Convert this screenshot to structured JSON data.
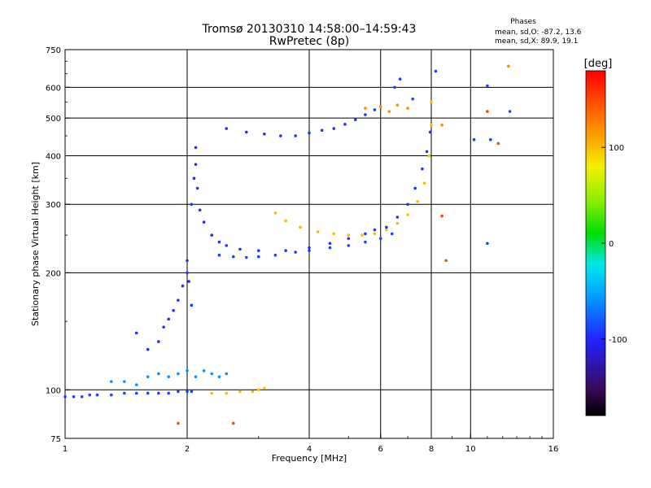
{
  "chart_data": {
    "type": "scatter",
    "title": "Tromsø 20130310 14:58:00–14:59:43",
    "subtitle": "RwPretec (8p)",
    "xlabel": "Frequency [MHz]",
    "ylabel": "Stationary phase Virtual Height [km]",
    "x_scale": "log",
    "y_scale": "log",
    "xlim": [
      1,
      16
    ],
    "ylim": [
      75,
      750
    ],
    "x_ticks": [
      1,
      2,
      4,
      6,
      8,
      10,
      16
    ],
    "x_tick_labels": [
      "1",
      "2",
      "4",
      "6",
      "8",
      "10",
      "16"
    ],
    "y_ticks": [
      75,
      100,
      200,
      300,
      400,
      500,
      600,
      750
    ],
    "y_tick_labels": [
      "75",
      "100",
      "200",
      "300",
      "400",
      "500",
      "600",
      "750"
    ],
    "x_grid": [
      2,
      4,
      6,
      8,
      10
    ],
    "y_grid": [
      100,
      200,
      300,
      400,
      500,
      600
    ],
    "info_block": {
      "title": "Phases",
      "line1": "mean, sd,O: -87.2, 13.6",
      "line2": "mean, sd,X: 89.9, 19.1"
    },
    "colorbar": {
      "label": "[deg]",
      "range": [
        -180,
        180
      ],
      "ticks": [
        100,
        0,
        -100
      ],
      "tick_labels": [
        "100",
        "0",
        "-100"
      ]
    },
    "series": [
      {
        "kind": "o-low-trace",
        "color_value": -90,
        "points": [
          [
            1.0,
            96
          ],
          [
            1.05,
            96
          ],
          [
            1.1,
            96
          ],
          [
            1.15,
            97
          ],
          [
            1.2,
            97
          ],
          [
            1.3,
            97
          ],
          [
            1.4,
            98
          ],
          [
            1.5,
            98
          ],
          [
            1.6,
            98
          ],
          [
            1.7,
            98
          ],
          [
            1.8,
            98
          ],
          [
            1.9,
            99
          ],
          [
            2.0,
            99
          ],
          [
            2.05,
            99
          ]
        ]
      },
      {
        "kind": "low-echo-cloud",
        "color_value": -60,
        "points": [
          [
            1.3,
            105
          ],
          [
            1.4,
            105
          ],
          [
            1.5,
            103
          ],
          [
            1.6,
            108
          ],
          [
            1.7,
            110
          ],
          [
            1.8,
            108
          ],
          [
            1.9,
            110
          ],
          [
            2.0,
            112
          ],
          [
            2.1,
            108
          ],
          [
            2.2,
            112
          ],
          [
            2.3,
            110
          ],
          [
            2.4,
            108
          ],
          [
            2.5,
            110
          ]
        ]
      },
      {
        "kind": "x-low-trace",
        "color_value": 100,
        "points": [
          [
            2.3,
            98
          ],
          [
            2.5,
            98
          ],
          [
            2.7,
            99
          ],
          [
            2.9,
            99
          ],
          [
            3.0,
            100
          ],
          [
            3.1,
            101
          ]
        ]
      },
      {
        "kind": "o-steep-rise",
        "color_value": -95,
        "points": [
          [
            1.5,
            140
          ],
          [
            1.6,
            127
          ],
          [
            1.7,
            133
          ],
          [
            1.75,
            145
          ],
          [
            1.8,
            152
          ],
          [
            1.85,
            160
          ],
          [
            1.9,
            170
          ],
          [
            1.95,
            185
          ],
          [
            2.0,
            200
          ],
          [
            2.0,
            215
          ],
          [
            2.02,
            190
          ],
          [
            2.05,
            165
          ]
        ]
      },
      {
        "kind": "o-cusp-branch",
        "color_value": -95,
        "points": [
          [
            2.05,
            300
          ],
          [
            2.08,
            350
          ],
          [
            2.1,
            420
          ],
          [
            2.1,
            380
          ],
          [
            2.12,
            330
          ],
          [
            2.15,
            290
          ],
          [
            2.2,
            270
          ],
          [
            2.3,
            250
          ],
          [
            2.4,
            240
          ],
          [
            2.5,
            235
          ],
          [
            2.7,
            230
          ],
          [
            3.0,
            228
          ],
          [
            3.5,
            228
          ],
          [
            4.0,
            232
          ],
          [
            4.5,
            238
          ],
          [
            5.0,
            245
          ],
          [
            5.5,
            252
          ],
          [
            5.8,
            258
          ]
        ]
      },
      {
        "kind": "o-f-lower",
        "color_value": -90,
        "points": [
          [
            2.4,
            222
          ],
          [
            2.6,
            220
          ],
          [
            2.8,
            219
          ],
          [
            3.0,
            220
          ],
          [
            3.3,
            222
          ],
          [
            3.7,
            226
          ],
          [
            4.0,
            228
          ],
          [
            4.5,
            232
          ],
          [
            5.0,
            235
          ],
          [
            5.5,
            240
          ],
          [
            6.0,
            245
          ],
          [
            6.4,
            252
          ]
        ]
      },
      {
        "kind": "x-f-trace",
        "color_value": 100,
        "points": [
          [
            3.3,
            285
          ],
          [
            3.5,
            272
          ],
          [
            3.8,
            262
          ],
          [
            4.2,
            255
          ],
          [
            4.6,
            252
          ],
          [
            5.0,
            250
          ],
          [
            5.4,
            250
          ],
          [
            5.8,
            252
          ],
          [
            6.2,
            258
          ],
          [
            6.6,
            268
          ],
          [
            7.0,
            282
          ],
          [
            7.4,
            305
          ],
          [
            7.7,
            340
          ],
          [
            7.9,
            400
          ],
          [
            8.0,
            480
          ],
          [
            8.0,
            550
          ]
        ]
      },
      {
        "kind": "o-f-upper",
        "color_value": -95,
        "points": [
          [
            6.2,
            262
          ],
          [
            6.6,
            278
          ],
          [
            7.0,
            300
          ],
          [
            7.3,
            330
          ],
          [
            7.6,
            370
          ],
          [
            7.8,
            410
          ],
          [
            7.95,
            460
          ]
        ]
      },
      {
        "kind": "o-echo-upper",
        "color_value": -95,
        "points": [
          [
            2.5,
            470
          ],
          [
            2.8,
            460
          ],
          [
            3.1,
            455
          ],
          [
            3.4,
            450
          ],
          [
            3.7,
            450
          ],
          [
            4.0,
            458
          ],
          [
            4.3,
            465
          ],
          [
            4.6,
            470
          ],
          [
            4.9,
            482
          ],
          [
            5.2,
            495
          ],
          [
            5.5,
            510
          ],
          [
            5.8,
            525
          ]
        ]
      },
      {
        "kind": "scattered",
        "color_value": 120,
        "points": [
          [
            5.5,
            530
          ],
          [
            6.0,
            535
          ],
          [
            6.3,
            520
          ],
          [
            6.6,
            540
          ],
          [
            7.0,
            530
          ],
          [
            8.5,
            480
          ],
          [
            11.0,
            520
          ],
          [
            12.4,
            680
          ]
        ]
      },
      {
        "kind": "scattered",
        "color_value": -90,
        "points": [
          [
            6.5,
            600
          ],
          [
            6.7,
            630
          ],
          [
            7.2,
            560
          ],
          [
            8.2,
            660
          ],
          [
            10.2,
            440
          ],
          [
            11.0,
            605
          ],
          [
            11.2,
            440
          ],
          [
            12.5,
            520
          ],
          [
            11.0,
            238
          ]
        ]
      },
      {
        "kind": "scattered",
        "color_value": 150,
        "points": [
          [
            1.9,
            82
          ],
          [
            2.6,
            82
          ],
          [
            8.7,
            215
          ],
          [
            8.5,
            280
          ],
          [
            11.0,
            520
          ],
          [
            11.7,
            430
          ]
        ]
      }
    ]
  }
}
